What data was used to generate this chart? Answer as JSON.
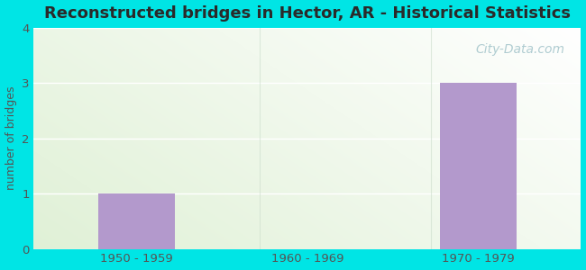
{
  "title": "Reconstructed bridges in Hector, AR - Historical Statistics",
  "categories": [
    "1950 - 1959",
    "1960 - 1969",
    "1970 - 1979"
  ],
  "values": [
    1,
    0,
    3
  ],
  "bar_color": "#b399cc",
  "bar_width": 0.45,
  "ylim": [
    0,
    4
  ],
  "yticks": [
    0,
    1,
    2,
    3,
    4
  ],
  "ylabel": "number of bridges",
  "background_color": "#00e5e5",
  "grid_color": "#ffffff",
  "title_color": "#2a2a2a",
  "title_fontsize": 13,
  "tick_color": "#555555",
  "watermark": "City-Data.com",
  "separator_color": "#ccddcc"
}
